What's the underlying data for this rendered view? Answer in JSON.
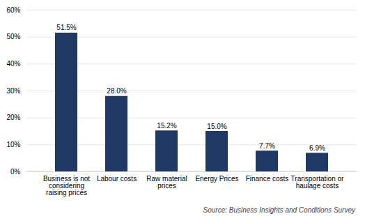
{
  "chart_data": {
    "type": "bar",
    "categories": [
      "Business is not\nconsidering\nraising prices",
      "Labour costs",
      "Raw material\nprices",
      "Energy Prices",
      "Finance costs",
      "Transportation or\nhaulage costs"
    ],
    "values": [
      51.5,
      28.0,
      15.2,
      15.0,
      7.7,
      6.9
    ],
    "value_labels": [
      "51.5%",
      "28.0%",
      "15.2%",
      "15.0%",
      "7.7%",
      "6.9%"
    ],
    "color": "#1F3864",
    "ylim": [
      0,
      60
    ],
    "yticks": [
      {
        "value": 0,
        "label": "0%"
      },
      {
        "value": 10,
        "label": "10%"
      },
      {
        "value": 20,
        "label": "20%"
      },
      {
        "value": 30,
        "label": "30%"
      },
      {
        "value": 40,
        "label": "40%"
      },
      {
        "value": 50,
        "label": "50%"
      },
      {
        "value": 60,
        "label": "60%"
      }
    ],
    "grid": true,
    "data_labels": true,
    "caption": "Source: Business Insights and Conditions Survey"
  }
}
